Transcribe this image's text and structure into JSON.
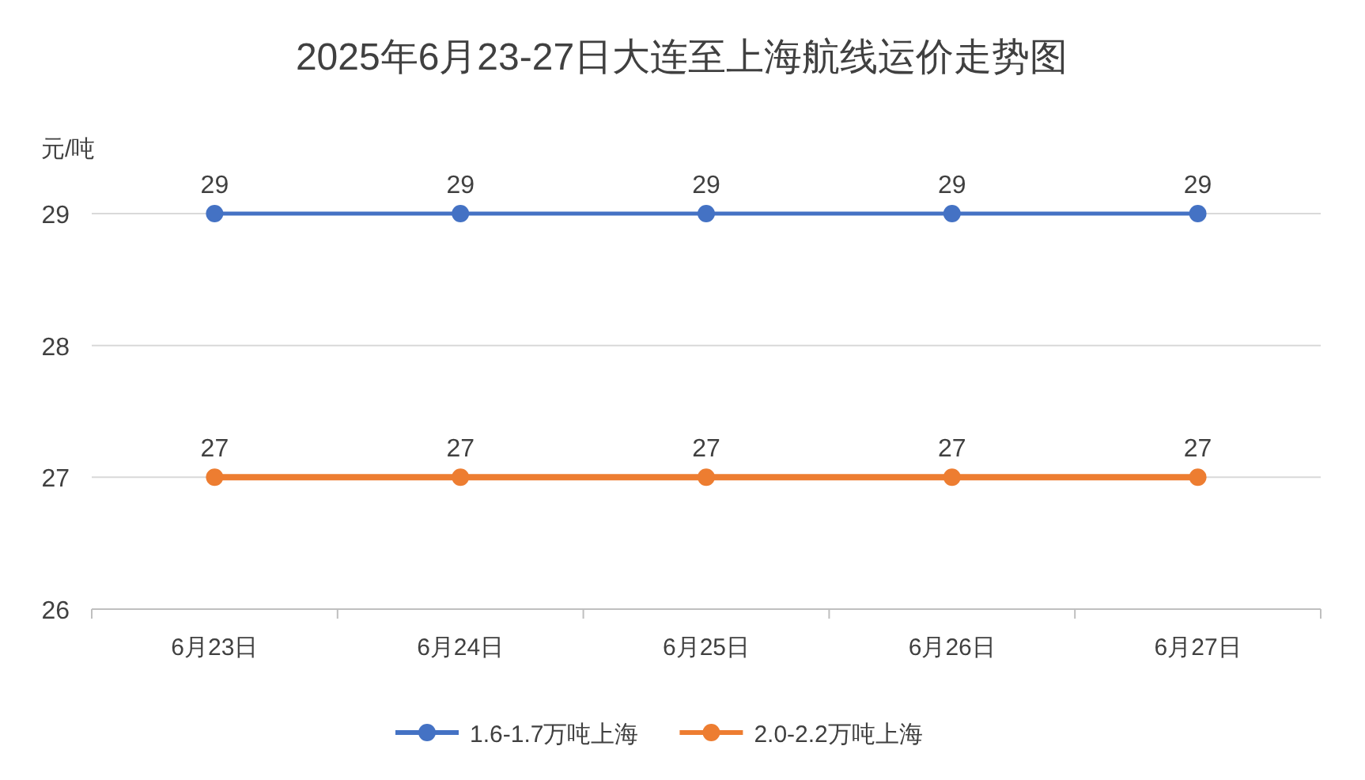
{
  "chart_data": {
    "type": "line",
    "title": "2025年6月23-27日大连至上海航线运价走势图",
    "ylabel": "元/吨",
    "categories": [
      "6月23日",
      "6月24日",
      "6月25日",
      "6月26日",
      "6月27日"
    ],
    "series": [
      {
        "name": "1.6-1.7万吨上海",
        "color": "#4472c4",
        "values": [
          29,
          29,
          29,
          29,
          29
        ]
      },
      {
        "name": "2.0-2.2万吨上海",
        "color": "#ed7d31",
        "values": [
          27,
          27,
          27,
          27,
          27
        ]
      }
    ],
    "ylim": [
      26,
      29
    ],
    "yticks": [
      26,
      27,
      28,
      29
    ],
    "grid": "y",
    "legend": "bottom",
    "marker": "circle",
    "line_style": "solid",
    "data_labels": true
  }
}
